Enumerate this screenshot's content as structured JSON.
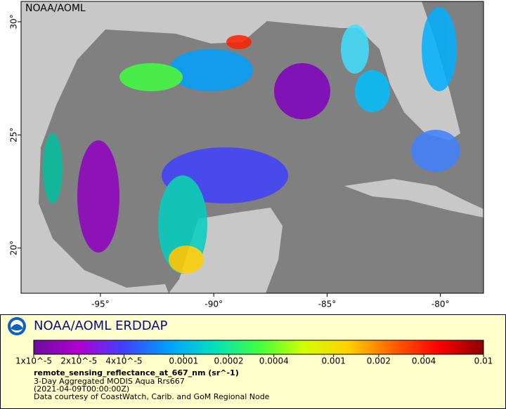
{
  "map": {
    "label": "NOAA/AOML",
    "xlim": [
      -98.5,
      -78.1
    ],
    "ylim": [
      18,
      30.9
    ],
    "xticks": [
      {
        "value": -95,
        "label": "-95°"
      },
      {
        "value": -90,
        "label": "-90°"
      },
      {
        "value": -85,
        "label": "-85°"
      },
      {
        "value": -80,
        "label": "-80°"
      }
    ],
    "yticks": [
      {
        "value": 20,
        "label": "20°"
      },
      {
        "value": 25,
        "label": "25°"
      },
      {
        "value": 30,
        "label": "30°"
      }
    ]
  },
  "legend": {
    "title": "NOAA/AOML ERDDAP",
    "colorbar": {
      "scale": "log",
      "lim": [
        1e-05,
        0.01
      ],
      "colors": [
        "#6a0d9e",
        "#b000d0",
        "#4040ff",
        "#00a0ff",
        "#00e0c0",
        "#40ff40",
        "#d0ff00",
        "#ffd000",
        "#ff6000",
        "#ff0000",
        "#8b0000"
      ],
      "ticks": [
        {
          "value": 1e-05,
          "label": "1x10^-5"
        },
        {
          "value": 2e-05,
          "label": "2x10^-5"
        },
        {
          "value": 4e-05,
          "label": "4x10^-5"
        },
        0.0001,
        0.0002,
        0.0004,
        0.001,
        0.002,
        0.004,
        0.01
      ]
    },
    "variable": "remote_sensing_reflectance_at_667_nm (sr^-1)",
    "lines": [
      "3-Day Aggregated MODIS Aqua Rrs667",
      "(2021-04-09T00:00:00Z)",
      "Data courtesy of CoastWatch, Carib. and GoM Regional Node"
    ]
  }
}
